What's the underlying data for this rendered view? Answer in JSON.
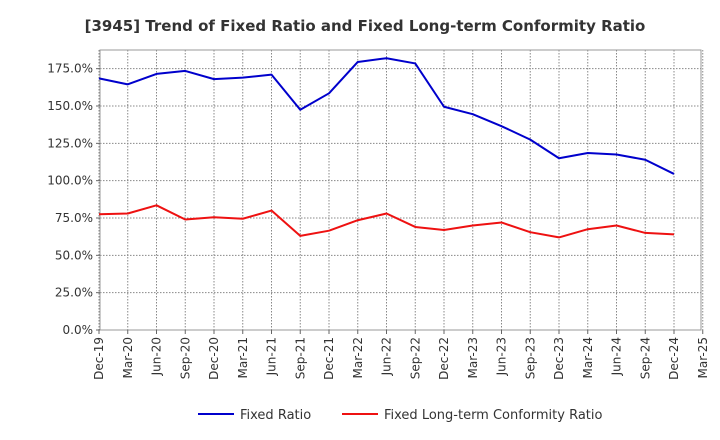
{
  "chart_data": {
    "type": "line",
    "title": "[3945]  Trend of Fixed Ratio and Fixed Long-term Conformity Ratio",
    "xlabel": "",
    "ylabel": "",
    "ylim": [
      0,
      187.5
    ],
    "y_ticks": [
      "0.0%",
      "25.0%",
      "50.0%",
      "75.0%",
      "100.0%",
      "125.0%",
      "150.0%",
      "175.0%"
    ],
    "y_tick_values": [
      0,
      25,
      50,
      75,
      100,
      125,
      150,
      175
    ],
    "categories": [
      "Dec-19",
      "Mar-20",
      "Jun-20",
      "Sep-20",
      "Dec-20",
      "Mar-21",
      "Jun-21",
      "Sep-21",
      "Dec-21",
      "Mar-22",
      "Jun-22",
      "Sep-22",
      "Dec-22",
      "Mar-23",
      "Jun-23",
      "Sep-23",
      "Dec-23",
      "Mar-24",
      "Jun-24",
      "Sep-24",
      "Dec-24",
      "Mar-25"
    ],
    "grid": true,
    "legend_position": "bottom",
    "series": [
      {
        "name": "Fixed Ratio",
        "color": "#0000cc",
        "values": [
          168.5,
          164.5,
          171.5,
          173.5,
          168.0,
          169.0,
          171.0,
          147.5,
          158.5,
          179.5,
          182.0,
          178.5,
          149.5,
          144.5,
          136.5,
          127.5,
          115.0,
          118.5,
          117.5,
          114.0,
          104.5,
          null
        ]
      },
      {
        "name": "Fixed Long-term Conformity Ratio",
        "color": "#ee1111",
        "values": [
          77.5,
          78.0,
          83.5,
          74.0,
          75.5,
          74.5,
          80.0,
          63.0,
          66.5,
          73.5,
          78.0,
          69.0,
          67.0,
          70.0,
          72.0,
          65.5,
          62.0,
          67.5,
          70.0,
          65.0,
          64.0,
          null
        ]
      }
    ]
  }
}
